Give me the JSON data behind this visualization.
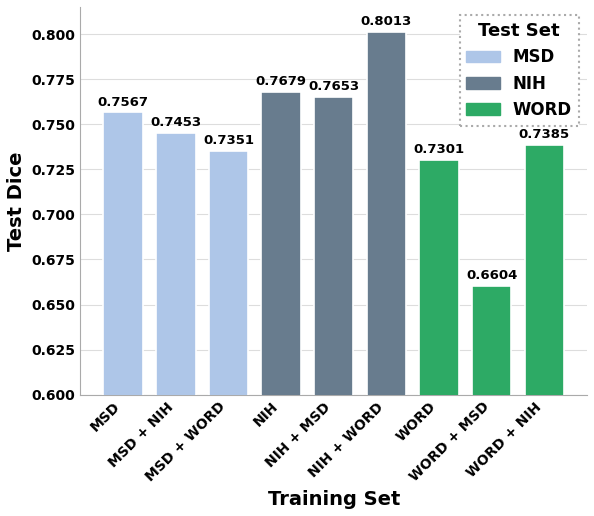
{
  "categories": [
    "MSD",
    "MSD + NIH",
    "MSD + WORD",
    "NIH",
    "NIH + MSD",
    "NIH + WORD",
    "WORD",
    "WORD + MSD",
    "WORD + NIH"
  ],
  "values": [
    0.7567,
    0.7453,
    0.7351,
    0.7679,
    0.7653,
    0.8013,
    0.7301,
    0.6604,
    0.7385
  ],
  "bar_colors": [
    "#aec6e8",
    "#aec6e8",
    "#aec6e8",
    "#687c8e",
    "#687c8e",
    "#687c8e",
    "#2daa65",
    "#2daa65",
    "#2daa65"
  ],
  "legend_colors": [
    "#aec6e8",
    "#687c8e",
    "#2daa65"
  ],
  "legend_labels": [
    "MSD",
    "NIH",
    "WORD"
  ],
  "legend_title": "Test Set",
  "xlabel": "Training Set",
  "ylabel": "Test Dice",
  "ylim": [
    0.6,
    0.815
  ],
  "yticks": [
    0.6,
    0.625,
    0.65,
    0.675,
    0.7,
    0.725,
    0.75,
    0.775,
    0.8
  ],
  "value_label_fontsize": 9.5,
  "axis_label_fontsize": 14,
  "tick_label_fontsize": 10,
  "legend_fontsize": 12,
  "legend_title_fontsize": 13,
  "background_color": "#ffffff",
  "bar_width": 0.75
}
